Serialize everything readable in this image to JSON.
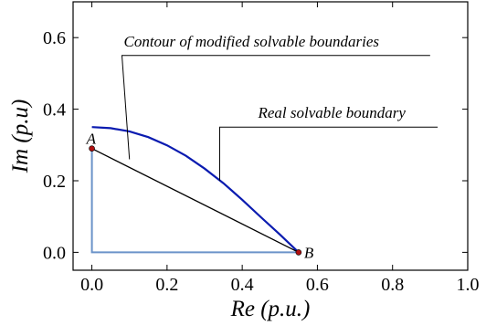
{
  "chart_data": {
    "type": "line",
    "title": "",
    "xlabel": "Re (p.u.)",
    "ylabel": "Im (p.u)",
    "xlim": [
      -0.05,
      1.0
    ],
    "ylim": [
      -0.05,
      0.7
    ],
    "xticks": [
      0.0,
      0.2,
      0.4,
      0.6,
      0.8,
      1.0
    ],
    "xtick_labels": [
      "0.0",
      "0.2",
      "0.4",
      "0.6",
      "0.8",
      "1.0"
    ],
    "yticks": [
      0.0,
      0.2,
      0.4,
      0.6
    ],
    "ytick_labels": [
      "0.0",
      "0.2",
      "0.4",
      "0.6"
    ],
    "grid": false,
    "series": [
      {
        "name": "Real solvable boundary",
        "color": "#0a1bb0",
        "x": [
          0.0,
          0.05,
          0.1,
          0.15,
          0.2,
          0.25,
          0.3,
          0.35,
          0.4,
          0.45,
          0.5,
          0.55
        ],
        "y": [
          0.35,
          0.347,
          0.338,
          0.322,
          0.299,
          0.27,
          0.234,
          0.193,
          0.147,
          0.098,
          0.05,
          0.0
        ]
      },
      {
        "name": "Contour of modified solvable boundaries",
        "color": "#000000",
        "x": [
          0.0,
          0.55
        ],
        "y": [
          0.29,
          0.0
        ]
      },
      {
        "name": "Contour of modified solvable boundaries (axes)",
        "color": "#6b93c9",
        "x": [
          0.0,
          0.0,
          0.55
        ],
        "y": [
          0.29,
          0.0,
          0.0
        ]
      }
    ],
    "points": [
      {
        "label": "A",
        "x": 0.0,
        "y": 0.29,
        "color": "#b01010"
      },
      {
        "label": "B",
        "x": 0.55,
        "y": 0.0,
        "color": "#b01010"
      }
    ],
    "annotations": [
      {
        "text": "Contour of modified solvable boundaries",
        "target_x": 0.1,
        "target_y": 0.26,
        "text_x": 0.08,
        "text_y": 0.55
      },
      {
        "text": "Real solvable boundary",
        "target_x": 0.34,
        "target_y": 0.2,
        "text_x": 0.34,
        "text_y": 0.35
      }
    ]
  }
}
